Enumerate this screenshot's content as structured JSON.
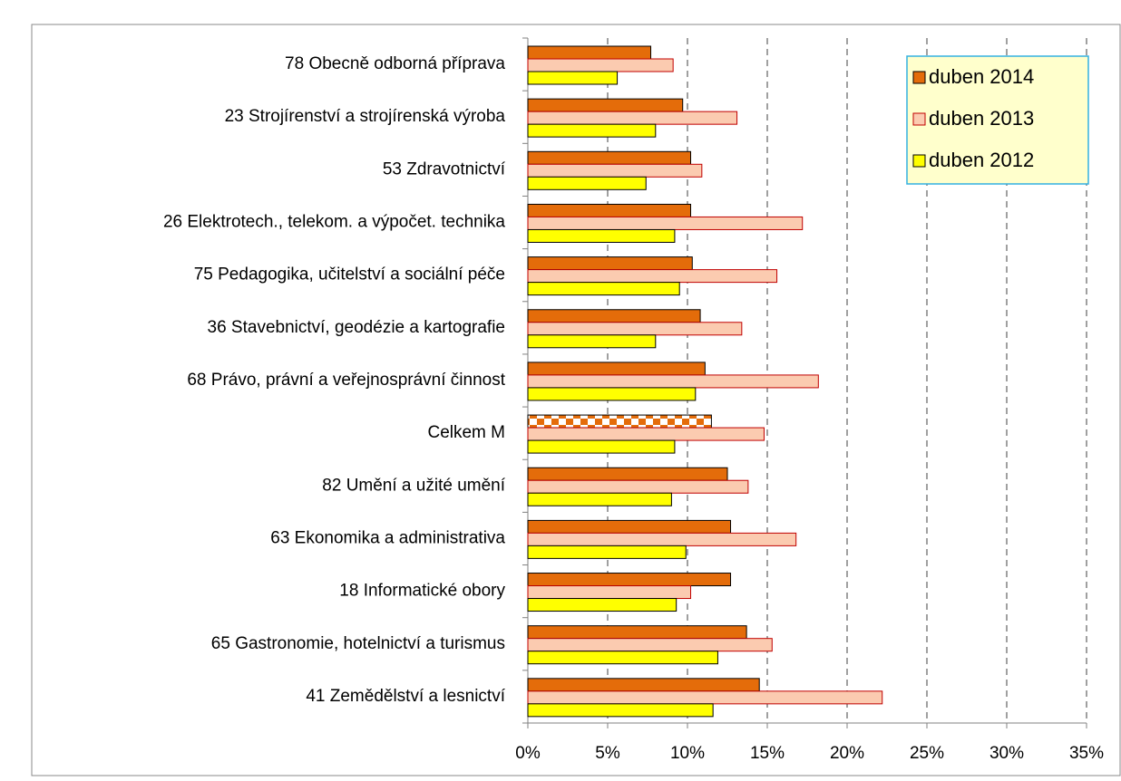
{
  "chart_data": {
    "type": "bar",
    "orientation": "horizontal",
    "categories": [
      "78 Obecně odborná příprava",
      "23 Strojírenství a strojírenská výroba",
      "53 Zdravotnictví",
      "26 Elektrotech., telekom. a výpočet. technika",
      "75 Pedagogika, učitelství a sociální péče",
      "36 Stavebnictví, geodézie a kartografie",
      "68 Právo, právní a veřejnosprávní činnost",
      "Celkem M",
      "82 Umění a užité umění",
      "63 Ekonomika a administrativa",
      "18 Informatické obory",
      "65 Gastronomie, hotelnictví a turismus",
      "41 Zemědělství a lesnictví"
    ],
    "series": [
      {
        "name": "duben 2014",
        "color": "#e46c0a",
        "stroke": "#000000",
        "values": [
          7.7,
          9.7,
          10.2,
          10.2,
          10.3,
          10.8,
          11.1,
          11.5,
          12.5,
          12.7,
          12.7,
          13.7,
          14.5
        ]
      },
      {
        "name": "duben 2013",
        "color": "#fbcbb0",
        "stroke": "#c00000",
        "values": [
          9.1,
          13.1,
          10.9,
          17.2,
          15.6,
          13.4,
          18.2,
          14.8,
          13.8,
          16.8,
          10.2,
          15.3,
          22.2
        ]
      },
      {
        "name": "duben 2012",
        "color": "#ffff00",
        "stroke": "#000000",
        "values": [
          5.6,
          8.0,
          7.4,
          9.2,
          9.5,
          8.0,
          10.5,
          9.2,
          9.0,
          9.9,
          9.3,
          11.9,
          11.6
        ]
      }
    ],
    "patterned_category": "Celkem M",
    "xlim": [
      0,
      35
    ],
    "xticks": [
      {
        "value": 0,
        "label": "0%"
      },
      {
        "value": 5,
        "label": "5%"
      },
      {
        "value": 10,
        "label": "10%"
      },
      {
        "value": 15,
        "label": "15%"
      },
      {
        "value": 20,
        "label": "20%"
      },
      {
        "value": 25,
        "label": "25%"
      },
      {
        "value": 30,
        "label": "30%"
      },
      {
        "value": 35,
        "label": "35%"
      }
    ],
    "grid": true,
    "legend": "top-right"
  }
}
